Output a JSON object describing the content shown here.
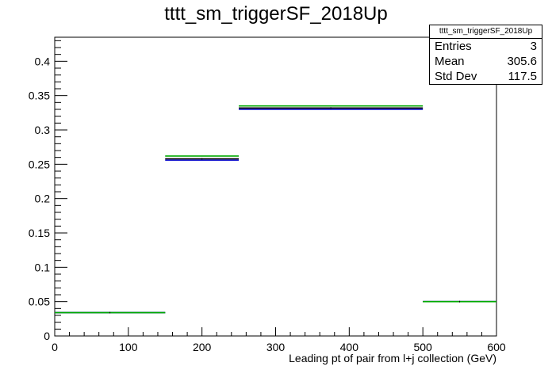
{
  "chart_data": {
    "type": "histogram",
    "title": "tttt_sm_triggerSF_2018Up",
    "xlabel": "Leading pt of pair from l+j collection (GeV)",
    "ylabel": "",
    "xlim": [
      0,
      600
    ],
    "ylim": [
      0,
      0.435
    ],
    "x_ticks": [
      0,
      100,
      200,
      300,
      400,
      500,
      600
    ],
    "y_ticks": [
      0,
      0.05,
      0.1,
      0.15,
      0.2,
      0.25,
      0.3,
      0.35,
      0.4
    ],
    "x_tick_labels": [
      "0",
      "100",
      "200",
      "300",
      "400",
      "500",
      "600"
    ],
    "y_tick_labels": [
      "0",
      "0.05",
      "0.1",
      "0.15",
      "0.2",
      "0.25",
      "0.3",
      "0.35",
      "0.4"
    ],
    "bin_edges": [
      0,
      150,
      250,
      500,
      600
    ],
    "series": [
      {
        "color": "#000000",
        "values": [
          0.034,
          0.258,
          0.332,
          0.05
        ]
      },
      {
        "color": "#0000cc",
        "values": [
          0.034,
          0.256,
          0.33,
          0.05
        ]
      },
      {
        "color": "#00aa00",
        "values": [
          0.034,
          0.262,
          0.335,
          0.05
        ]
      }
    ],
    "grid": false
  },
  "stats_box": {
    "name": "tttt_sm_triggerSF_2018Up",
    "entries_label": "Entries",
    "entries_value": "3",
    "mean_label": "Mean",
    "mean_value": "305.6",
    "stddev_label": "Std Dev",
    "stddev_value": "117.5"
  }
}
